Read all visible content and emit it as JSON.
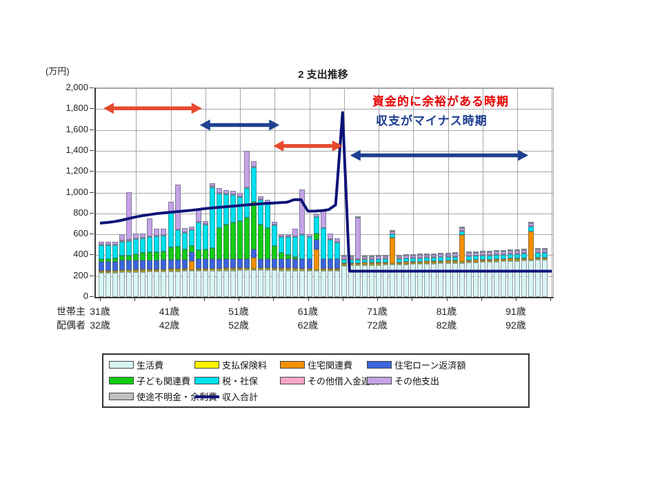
{
  "chart_data": {
    "type": "stacked-bar+line",
    "title": "2 支出推移",
    "y_unit": "(万円)",
    "ylim": [
      0,
      2000
    ],
    "y_tick_step": 200,
    "y_tick_labels": [
      "0",
      "200",
      "400",
      "600",
      "800",
      "1,000",
      "1,200",
      "1,400",
      "1,600",
      "1,800",
      "2,000"
    ],
    "age_min": 31,
    "age_count": 65,
    "x_axis": {
      "row1_header": "世帯主",
      "row2_header": "配偶者",
      "row1_labels": [
        {
          "age": 31,
          "label": "31歳"
        },
        {
          "age": 41,
          "label": "41歳"
        },
        {
          "age": 51,
          "label": "51歳"
        },
        {
          "age": 61,
          "label": "61歳"
        },
        {
          "age": 71,
          "label": "71歳"
        },
        {
          "age": 81,
          "label": "81歳"
        },
        {
          "age": 91,
          "label": "91歳"
        }
      ],
      "row2_labels": [
        {
          "age": 31,
          "label": "32歳"
        },
        {
          "age": 41,
          "label": "42歳"
        },
        {
          "age": 51,
          "label": "52歳"
        },
        {
          "age": 61,
          "label": "62歳"
        },
        {
          "age": 71,
          "label": "72歳"
        },
        {
          "age": 81,
          "label": "82歳"
        },
        {
          "age": 91,
          "label": "92歳"
        }
      ]
    },
    "series": [
      {
        "name": "生活費",
        "color": "#D8F4F4",
        "values": [
          230,
          230,
          232,
          238,
          238,
          240,
          240,
          242,
          242,
          244,
          246,
          246,
          248,
          248,
          250,
          250,
          252,
          252,
          254,
          254,
          256,
          258,
          258,
          258,
          258,
          256,
          254,
          254,
          254,
          252,
          252,
          250,
          252,
          252,
          252,
          300,
          302,
          302,
          304,
          306,
          306,
          308,
          308,
          310,
          312,
          314,
          316,
          318,
          320,
          322,
          324,
          326,
          326,
          330,
          332,
          334,
          336,
          340,
          342,
          344,
          346,
          350,
          350,
          354,
          356
        ]
      },
      {
        "name": "支払保険料",
        "color": "#FFF100",
        "values": [
          10,
          10,
          10,
          10,
          10,
          10,
          10,
          10,
          10,
          10,
          10,
          10,
          10,
          10,
          10,
          10,
          10,
          10,
          10,
          10,
          10,
          10,
          10,
          10,
          10,
          10,
          10,
          10,
          10,
          10,
          8,
          8,
          8,
          8,
          8,
          8,
          8,
          8,
          8,
          8,
          8,
          8,
          8,
          8,
          8,
          8,
          8,
          8,
          8,
          8,
          8,
          8,
          8,
          8,
          8,
          8,
          8,
          8,
          8,
          8,
          8,
          8,
          8,
          8,
          8
        ]
      },
      {
        "name": "住宅関連費",
        "color": "#F29000",
        "values": [
          12,
          12,
          12,
          12,
          12,
          12,
          12,
          12,
          12,
          12,
          12,
          12,
          12,
          85,
          12,
          12,
          12,
          12,
          12,
          12,
          12,
          12,
          110,
          12,
          12,
          12,
          12,
          12,
          12,
          12,
          12,
          200,
          12,
          12,
          12,
          15,
          15,
          15,
          15,
          15,
          15,
          15,
          250,
          15,
          15,
          15,
          15,
          15,
          15,
          15,
          15,
          15,
          260,
          15,
          15,
          15,
          15,
          15,
          15,
          15,
          15,
          15,
          270,
          15,
          15
        ]
      },
      {
        "name": "住宅ローン返済額",
        "color": "#3C64DD",
        "values": [
          85,
          85,
          85,
          88,
          88,
          88,
          88,
          88,
          88,
          88,
          88,
          88,
          88,
          88,
          88,
          88,
          88,
          88,
          88,
          88,
          88,
          80,
          80,
          80,
          80,
          88,
          88,
          88,
          88,
          88,
          90,
          90,
          90,
          90,
          90,
          0,
          0,
          0,
          0,
          0,
          0,
          0,
          0,
          0,
          0,
          0,
          0,
          0,
          0,
          0,
          0,
          0,
          0,
          0,
          0,
          0,
          0,
          0,
          0,
          0,
          0,
          0,
          0,
          0,
          0
        ]
      },
      {
        "name": "子ども関連費",
        "color": "#14CC14",
        "values": [
          25,
          25,
          30,
          45,
          50,
          60,
          70,
          75,
          80,
          85,
          120,
          125,
          100,
          60,
          90,
          95,
          110,
          300,
          330,
          350,
          360,
          400,
          450,
          330,
          300,
          120,
          60,
          40,
          20,
          0,
          0,
          60,
          0,
          0,
          0,
          0,
          0,
          0,
          0,
          0,
          0,
          0,
          0,
          0,
          0,
          0,
          0,
          0,
          0,
          0,
          0,
          0,
          0,
          0,
          0,
          0,
          0,
          0,
          0,
          0,
          0,
          0,
          0,
          0,
          0
        ]
      },
      {
        "name": "税・社保",
        "color": "#00E0EE",
        "values": [
          130,
          132,
          128,
          138,
          140,
          142,
          142,
          145,
          148,
          148,
          330,
          160,
          155,
          150,
          260,
          235,
          580,
          330,
          290,
          260,
          230,
          280,
          330,
          240,
          230,
          200,
          150,
          170,
          190,
          230,
          210,
          155,
          295,
          185,
          160,
          35,
          30,
          30,
          30,
          30,
          32,
          32,
          32,
          32,
          32,
          34,
          34,
          34,
          34,
          36,
          36,
          36,
          36,
          38,
          38,
          38,
          40,
          40,
          40,
          42,
          42,
          42,
          44,
          44,
          46
        ]
      },
      {
        "name": "その他借入金返済",
        "color": "#F8A6C8",
        "values": [
          8,
          8,
          8,
          8,
          8,
          8,
          8,
          8,
          8,
          8,
          8,
          8,
          8,
          8,
          8,
          8,
          8,
          8,
          8,
          8,
          8,
          8,
          8,
          8,
          8,
          8,
          8,
          8,
          8,
          8,
          5,
          5,
          5,
          5,
          5,
          5,
          5,
          5,
          5,
          5,
          5,
          5,
          5,
          5,
          5,
          5,
          5,
          5,
          5,
          5,
          5,
          5,
          5,
          5,
          5,
          5,
          5,
          5,
          5,
          5,
          5,
          5,
          5,
          5,
          5
        ]
      },
      {
        "name": "その他支出",
        "color": "#C5A3E6",
        "values": [
          28,
          28,
          25,
          60,
          460,
          45,
          35,
          170,
          65,
          60,
          95,
          430,
          40,
          25,
          120,
          25,
          30,
          40,
          30,
          35,
          30,
          350,
          55,
          25,
          30,
          25,
          18,
          18,
          70,
          430,
          25,
          25,
          175,
          55,
          35,
          25,
          22,
          400,
          22,
          22,
          22,
          22,
          22,
          22,
          22,
          22,
          22,
          24,
          24,
          24,
          24,
          24,
          24,
          24,
          24,
          26,
          26,
          26,
          26,
          26,
          28,
          28,
          28,
          28,
          28
        ]
      },
      {
        "name": "使途不明金・余剰費",
        "color": "#BFBFBF",
        "values": [
          0,
          0,
          0,
          0,
          0,
          0,
          0,
          0,
          0,
          0,
          0,
          0,
          0,
          0,
          0,
          0,
          0,
          0,
          0,
          0,
          0,
          0,
          0,
          0,
          0,
          0,
          0,
          0,
          0,
          0,
          0,
          0,
          0,
          0,
          0,
          10,
          10,
          10,
          10,
          10,
          10,
          10,
          10,
          10,
          10,
          10,
          10,
          10,
          10,
          10,
          10,
          10,
          10,
          10,
          10,
          10,
          10,
          10,
          10,
          10,
          10,
          10,
          10,
          10,
          10
        ]
      }
    ],
    "line_series": {
      "name": "収入合計",
      "color": "#0d1377",
      "values": [
        700,
        706,
        714,
        726,
        742,
        758,
        770,
        780,
        790,
        797,
        804,
        810,
        816,
        822,
        830,
        838,
        845,
        851,
        857,
        862,
        868,
        874,
        880,
        885,
        889,
        893,
        897,
        901,
        925,
        925,
        815,
        815,
        820,
        830,
        875,
        1760,
        240,
        240,
        240,
        240,
        240,
        240,
        240,
        240,
        240,
        240,
        240,
        240,
        240,
        240,
        240,
        240,
        240,
        240,
        240,
        240,
        240,
        240,
        240,
        240,
        240,
        240,
        240,
        240,
        240
      ]
    },
    "arrows": [
      {
        "name": "red-arrow-early",
        "color": "#E64A2E",
        "age_from": 31.5,
        "age_to": 45.7,
        "value": 1800
      },
      {
        "name": "navy-arrow-mid",
        "color": "#1E4191",
        "age_from": 45.4,
        "age_to": 56.9,
        "value": 1640
      },
      {
        "name": "red-arrow-pre-retire",
        "color": "#E64A2E",
        "age_from": 56.0,
        "age_to": 66.0,
        "value": 1440
      },
      {
        "name": "navy-arrow-late",
        "color": "#1E4191",
        "age_from": 67.1,
        "age_to": 92.8,
        "value": 1350
      }
    ]
  },
  "annotations": {
    "surplus": {
      "text": "資金的に余裕がある時期",
      "color": "#e60000"
    },
    "deficit": {
      "text": "収支がマイナス時期",
      "color": "#1b3d91"
    }
  },
  "legend": {
    "items": [
      {
        "label": "生活費",
        "color": "#D8F4F4",
        "type": "box"
      },
      {
        "label": "支払保険料",
        "color": "#FFF100",
        "type": "box"
      },
      {
        "label": "住宅関連費",
        "color": "#F29000",
        "type": "box"
      },
      {
        "label": "住宅ローン返済額",
        "color": "#3C64DD",
        "type": "box"
      },
      {
        "label": "子ども関連費",
        "color": "#14CC14",
        "type": "box"
      },
      {
        "label": "税・社保",
        "color": "#00E0EE",
        "type": "box"
      },
      {
        "label": "その他借入金返済",
        "color": "#F8A6C8",
        "type": "box"
      },
      {
        "label": "その他支出",
        "color": "#C5A3E6",
        "type": "box"
      },
      {
        "label": "使途不明金・余剰費",
        "color": "#BFBFBF",
        "type": "box"
      },
      {
        "label": "収入合計",
        "color": "#0d1377",
        "type": "line"
      }
    ]
  }
}
